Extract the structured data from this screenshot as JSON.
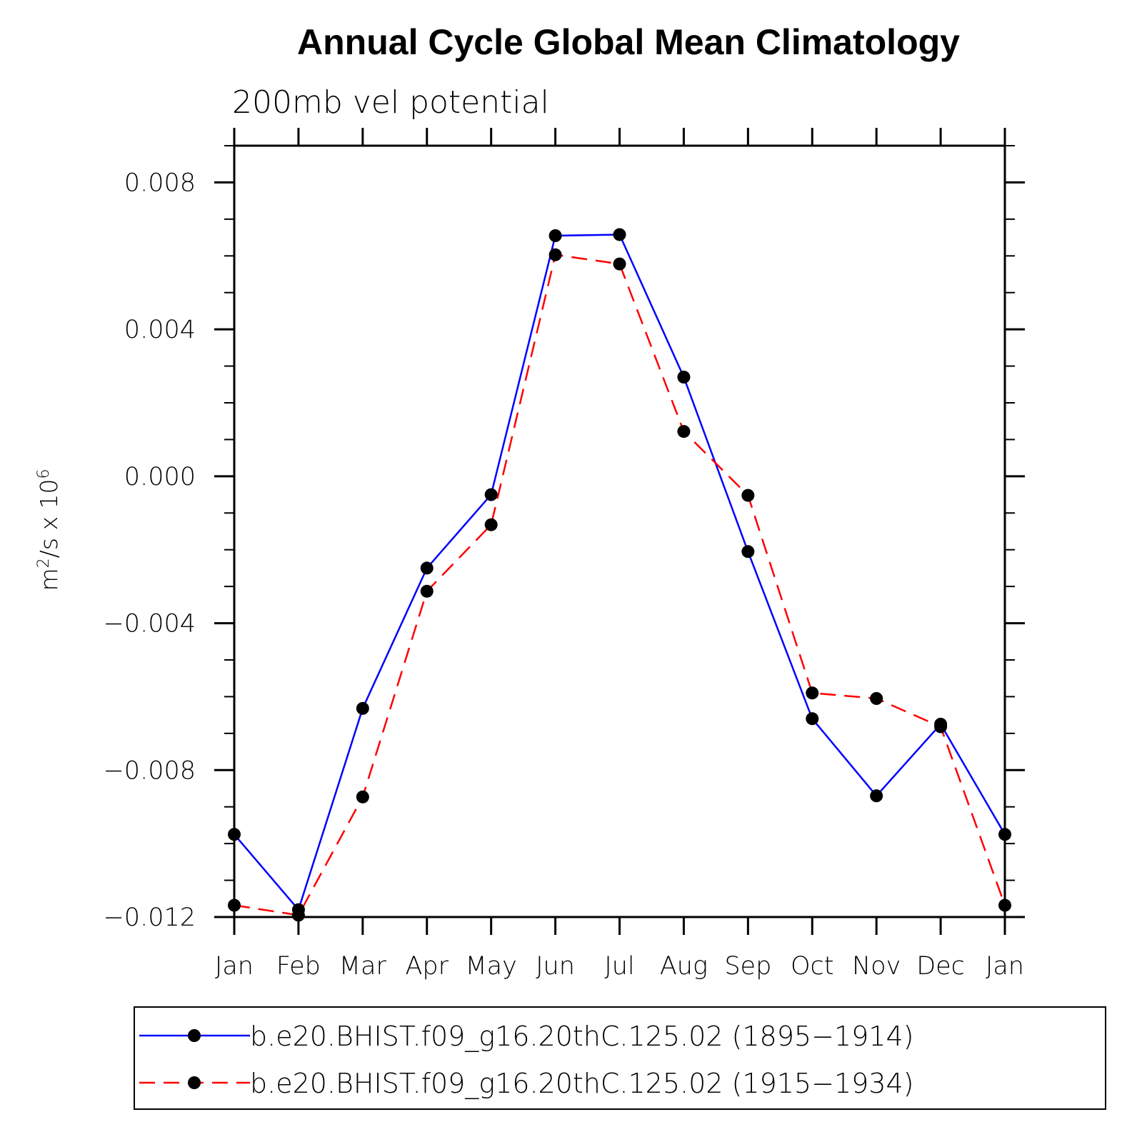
{
  "chart_data": {
    "type": "line",
    "title": "Annual Cycle Global Mean Climatology",
    "subtitle": "200mb vel potential",
    "ylabel": "m²/s x 10⁶",
    "ylabel_parts": {
      "base": "m",
      "exp1": "2",
      "mid": "/s x 10",
      "exp2": "6"
    },
    "xlabel": "",
    "categories": [
      "Jan",
      "Feb",
      "Mar",
      "Apr",
      "May",
      "Jun",
      "Jul",
      "Aug",
      "Sep",
      "Oct",
      "Nov",
      "Dec",
      "Jan"
    ],
    "ylim": [
      -0.012,
      0.009
    ],
    "yticks": [
      -0.012,
      -0.008,
      -0.004,
      0.0,
      0.004,
      0.008
    ],
    "ytick_labels": [
      "−0.012",
      "−0.008",
      "−0.004",
      "0.000",
      "0.004",
      "0.008"
    ],
    "series": [
      {
        "name": "b.e20.BHIST.f09_g16.20thC.125.02 (1895−1914)",
        "color": "#0000ff",
        "dash": "solid",
        "values": [
          -0.00975,
          -0.0118,
          -0.00632,
          -0.0025,
          -0.0005,
          0.00655,
          0.00658,
          0.0027,
          -0.00205,
          -0.0066,
          -0.0087,
          -0.00675,
          -0.00975
        ]
      },
      {
        "name": "b.e20.BHIST.f09_g16.20thC.125.02 (1915−1934)",
        "color": "#ff0000",
        "dash": "dashed",
        "values": [
          -0.01168,
          -0.01195,
          -0.00873,
          -0.00313,
          -0.00132,
          0.00603,
          0.00578,
          0.00122,
          -0.00052,
          -0.0059,
          -0.00605,
          -0.00682,
          -0.01168
        ]
      }
    ],
    "legend_position": "bottom",
    "marker_color": "#000000"
  }
}
